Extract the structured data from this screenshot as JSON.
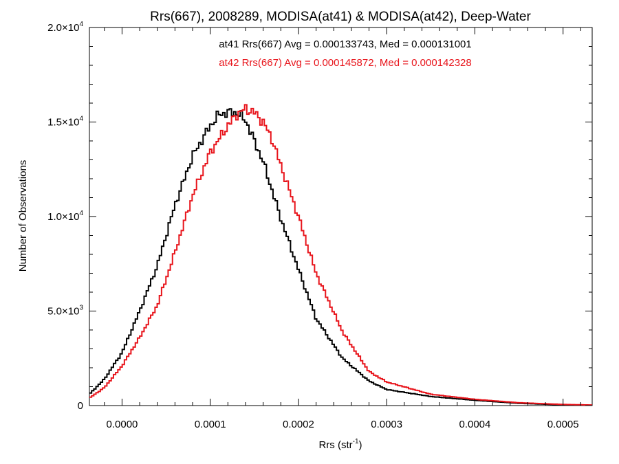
{
  "chart_data": {
    "type": "line",
    "title": "Rrs(667), 2008289, MODISA(at41) & MODISA(at42), Deep-Water",
    "xlabel": {
      "base": "Rrs (str",
      "sup": "-1",
      "close": ")"
    },
    "ylabel": "Number of Observations",
    "xlim": [
      -3.7e-05,
      0.000533
    ],
    "ylim": [
      0,
      20000
    ],
    "grid": false,
    "x_ticks": [
      {
        "value": 0.0,
        "label": "0.0000"
      },
      {
        "value": 0.0001,
        "label": "0.0001"
      },
      {
        "value": 0.0002,
        "label": "0.0002"
      },
      {
        "value": 0.0003,
        "label": "0.0003"
      },
      {
        "value": 0.0004,
        "label": "0.0004"
      },
      {
        "value": 0.0005,
        "label": "0.0005"
      }
    ],
    "y_ticks": [
      {
        "value": 0,
        "mant": "0",
        "exp": ""
      },
      {
        "value": 5000,
        "mant": "5.0×10",
        "exp": "3"
      },
      {
        "value": 10000,
        "mant": "1.0×10",
        "exp": "4"
      },
      {
        "value": 15000,
        "mant": "1.5×10",
        "exp": "4"
      },
      {
        "value": 20000,
        "mant": "2.0×10",
        "exp": "4"
      }
    ],
    "annotations": [
      {
        "text": "at41 Rrs(667) Avg = 0.000133743, Med = 0.000131001",
        "color": "#000000"
      },
      {
        "text": "at42 Rrs(667) Avg = 0.000145872, Med = 0.000142328",
        "color": "#e8141b"
      }
    ],
    "series": [
      {
        "color": "#000000",
        "x": [
          -3.7e-05,
          -2e-05,
          0.0,
          2e-05,
          4e-05,
          6e-05,
          8e-05,
          0.0001,
          0.00011,
          0.00012,
          0.00013,
          0.00014,
          0.00015,
          0.00016,
          0.00018,
          0.0002,
          0.00022,
          0.00025,
          0.00028,
          0.0003,
          0.00035,
          0.0004,
          0.00045,
          0.0005,
          0.000533
        ],
        "y": [
          600,
          1400,
          2800,
          5000,
          7400,
          10600,
          13200,
          14800,
          15400,
          15500,
          15500,
          15100,
          14000,
          12900,
          9900,
          7200,
          4600,
          2500,
          1300,
          850,
          480,
          280,
          120,
          40,
          20
        ]
      },
      {
        "color": "#e8141b",
        "x": [
          -3.7e-05,
          -2e-05,
          0.0,
          2e-05,
          4e-05,
          6e-05,
          8e-05,
          0.0001,
          0.00012,
          0.00013,
          0.00014,
          0.00015,
          0.00016,
          0.00017,
          0.00018,
          0.0002,
          0.00022,
          0.00025,
          0.00028,
          0.0003,
          0.00035,
          0.0004,
          0.00045,
          0.0005,
          0.000533
        ],
        "y": [
          400,
          950,
          2100,
          3600,
          5300,
          8100,
          11100,
          13400,
          14800,
          15400,
          15700,
          15500,
          15000,
          14100,
          12700,
          10000,
          7000,
          3900,
          1800,
          1250,
          600,
          330,
          150,
          60,
          30
        ]
      }
    ]
  }
}
